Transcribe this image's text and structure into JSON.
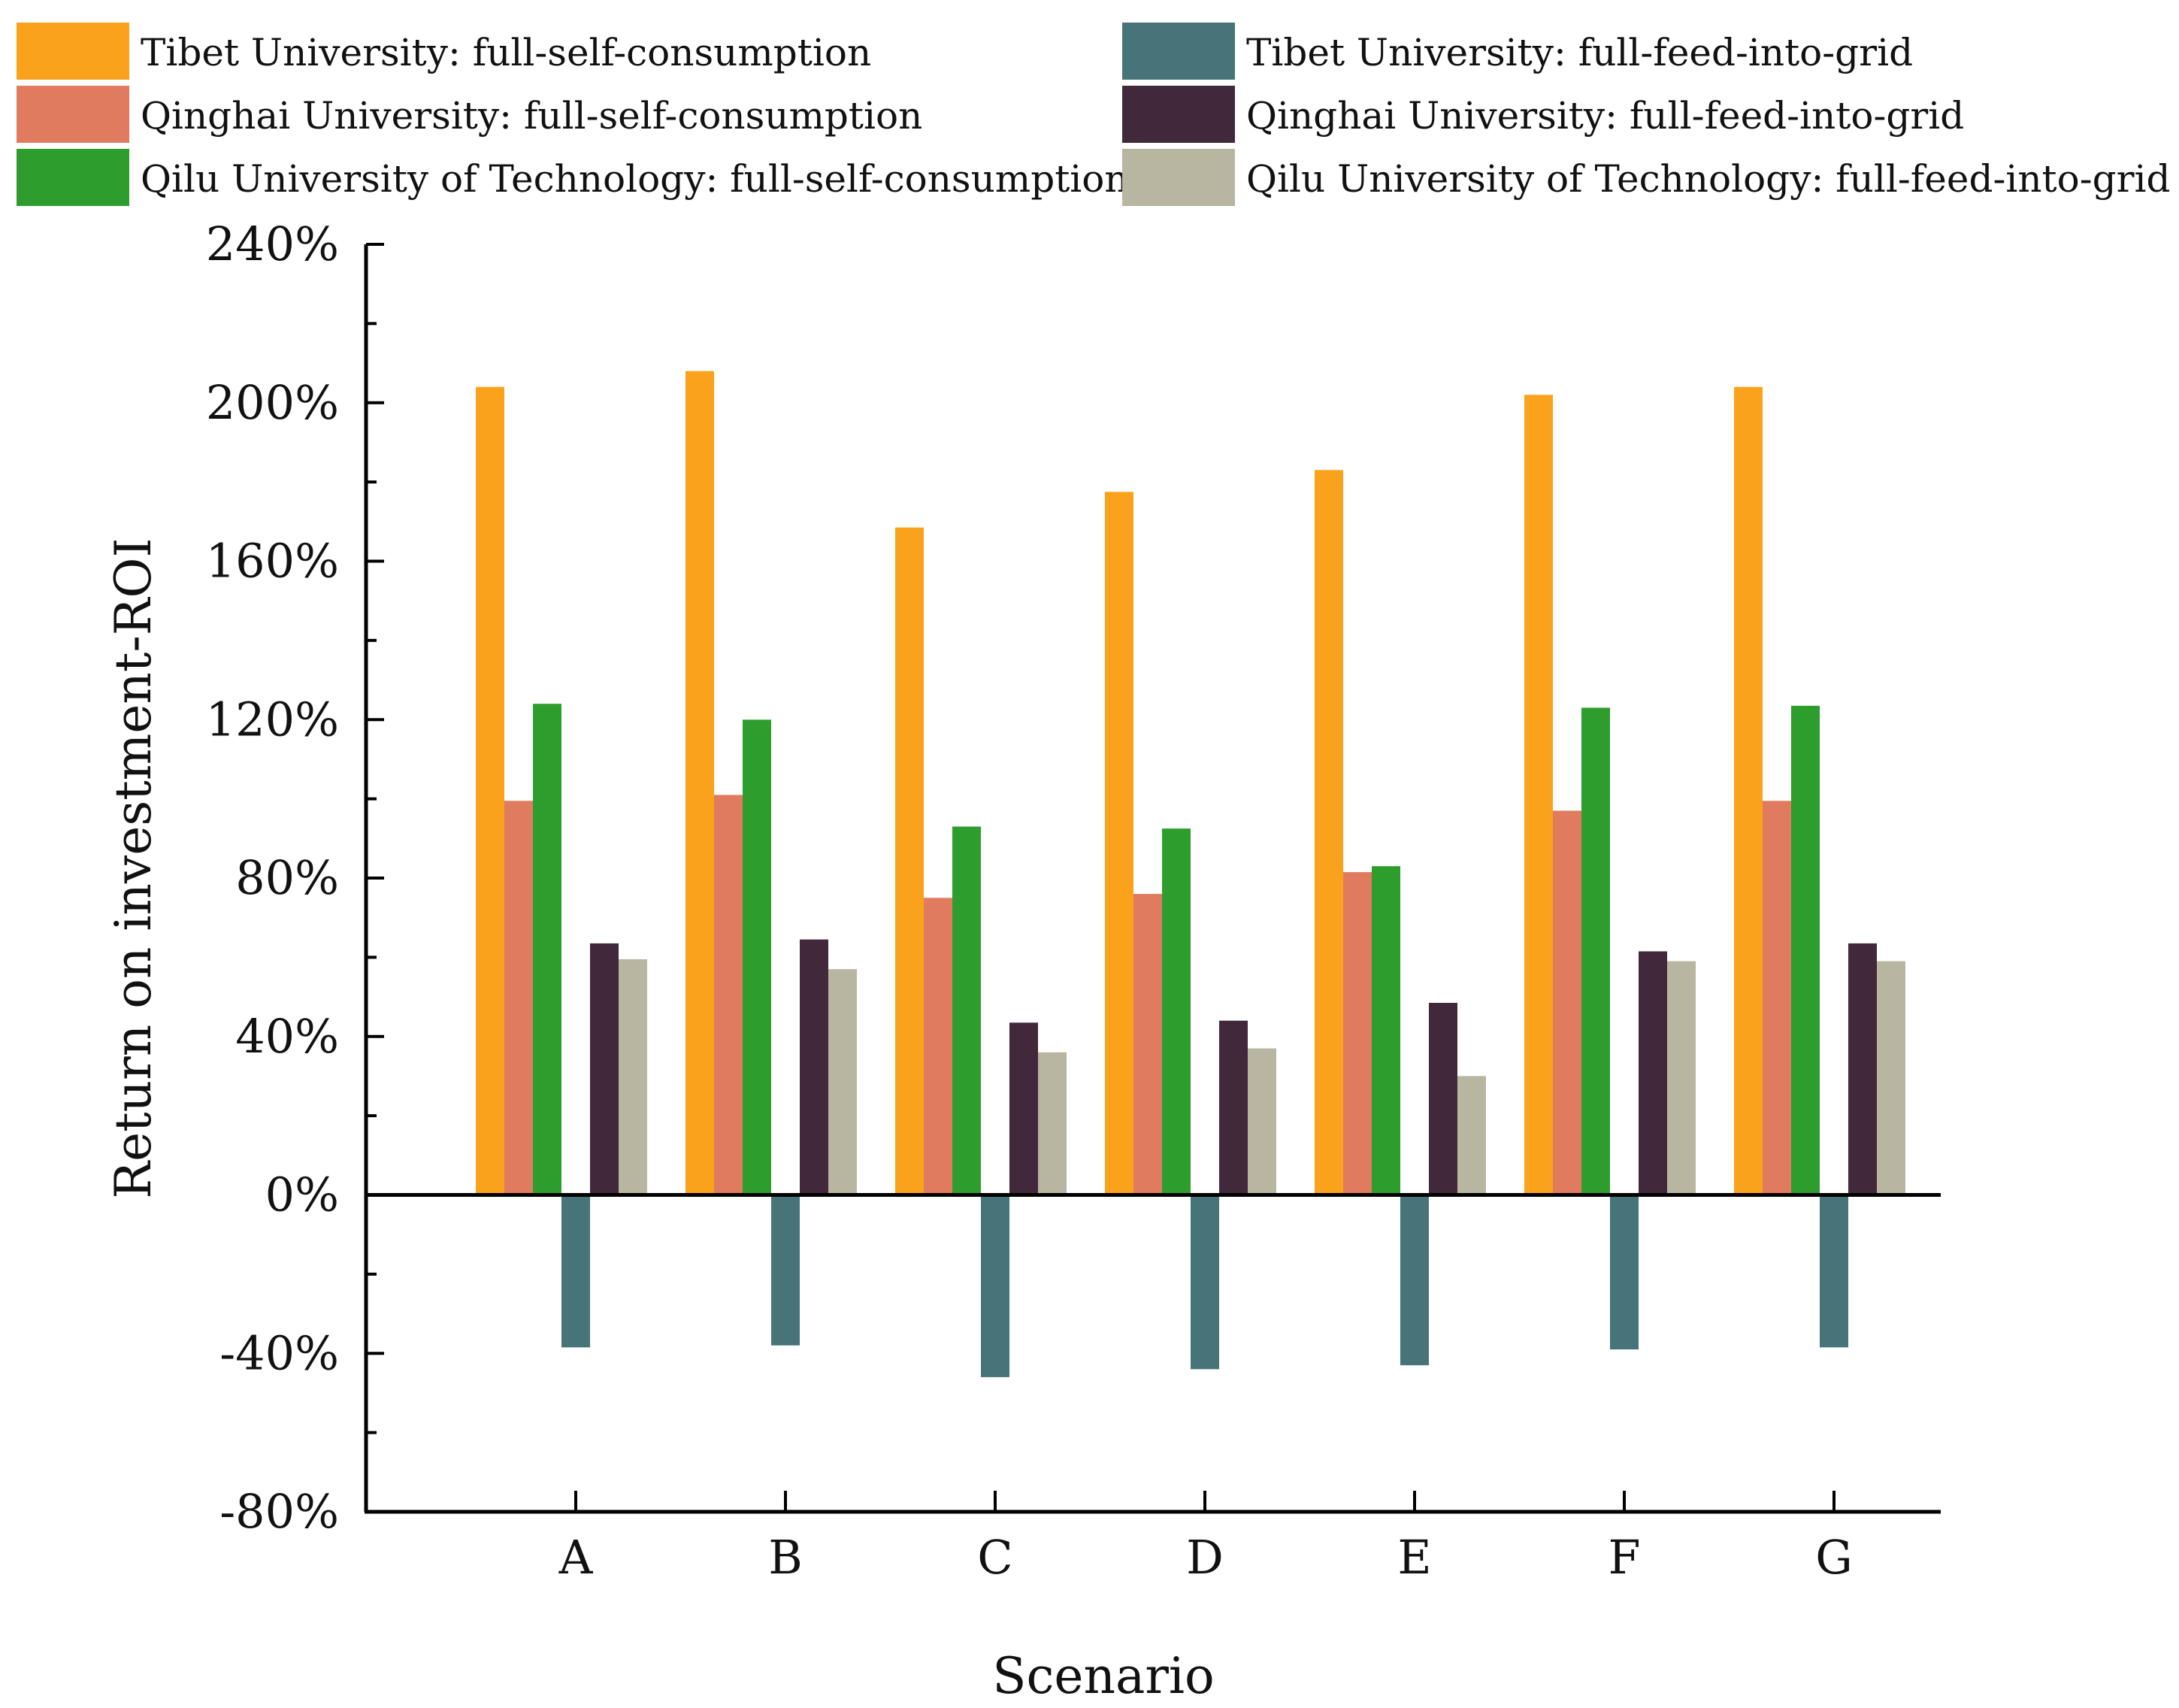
{
  "chart_data": {
    "type": "bar",
    "title": "",
    "xlabel": "Scenario",
    "ylabel": "Return on investment-ROI",
    "ylim": [
      -80,
      240
    ],
    "y_tick_step": 40,
    "y_minor_step": 20,
    "y_tick_suffix": "%",
    "grid": false,
    "legend_position": "top",
    "categories": [
      "A",
      "B",
      "C",
      "D",
      "E",
      "F",
      "G"
    ],
    "series": [
      {
        "name": "Tibet University: full-self-consumption",
        "color": "#FAA21B",
        "values": [
          204,
          208,
          168.5,
          177.5,
          183,
          202,
          204
        ]
      },
      {
        "name": "Tibet University: full-feed-into-grid",
        "color": "#467479",
        "values": [
          -38.5,
          -38,
          -46,
          -44,
          -43,
          -39,
          -38.5
        ]
      },
      {
        "name": "Qinghai University: full-self-consumption",
        "color": "#E07B5F",
        "values": [
          99.5,
          101,
          75,
          76,
          81.5,
          97,
          99.5
        ]
      },
      {
        "name": "Qinghai University: full-feed-into-grid",
        "color": "#41283B",
        "values": [
          63.5,
          64.5,
          43.5,
          44,
          48.5,
          61.5,
          63.5
        ]
      },
      {
        "name": "Qilu University of Technology: full-self-consumption",
        "color": "#2D9E2D",
        "values": [
          124,
          120,
          93,
          92.5,
          83,
          123,
          123.5
        ]
      },
      {
        "name": "Qilu University of Technology: full-feed-into-grid",
        "color": "#B8B5A0",
        "values": [
          59.5,
          57,
          36,
          37,
          30,
          59,
          59
        ]
      }
    ]
  }
}
